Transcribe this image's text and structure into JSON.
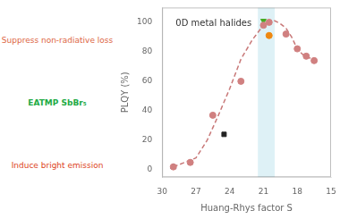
{
  "chart_data": {
    "type": "scatter",
    "xlabel": "Huang-Rhys factor S",
    "ylabel": "PLQY (%)",
    "xlim": [
      30,
      15
    ],
    "ylim": [
      -5,
      110
    ],
    "xticks": [
      30,
      27,
      24,
      21,
      18,
      15
    ],
    "yticks": [
      0,
      20,
      40,
      60,
      80,
      100
    ],
    "grid": false,
    "annotations": [
      {
        "text": "0D metal halides",
        "color": "#333333"
      },
      {
        "text": "Suppress non-radiative loss",
        "color": "#dd6644"
      },
      {
        "text": "EATMP SbBr₅",
        "color": "#22aa44"
      },
      {
        "text": "Induce bright emission",
        "color": "#dd4422"
      }
    ],
    "spans": [
      {
        "x": [
          20.0,
          21.5
        ],
        "color": "#c8e8f0"
      }
    ],
    "series": [
      {
        "type": "line",
        "line_style": "dashed",
        "color": "#c87878",
        "x": [
          29,
          28,
          27,
          26,
          25,
          24,
          23,
          22,
          21,
          20.5,
          20,
          19.5,
          19,
          18.5,
          18,
          17.5,
          17,
          16.5
        ],
        "values": [
          2,
          5,
          8,
          20,
          37,
          55,
          75,
          88,
          98,
          101,
          101,
          99,
          96,
          90,
          82,
          78,
          76,
          75
        ]
      },
      {
        "type": "scatter",
        "marker": "circle",
        "color": "#d08080",
        "x": [
          29.0,
          27.5,
          25.5,
          23.0,
          21.0,
          20.5,
          19.0,
          18.0,
          17.2,
          16.5
        ],
        "values": [
          2,
          5,
          37,
          60,
          98,
          100,
          92,
          82,
          77,
          74
        ]
      },
      {
        "type": "scatter",
        "marker": "triangle_up",
        "color": "#2255aa",
        "x": [
          29.0
        ],
        "values": [
          2
        ]
      },
      {
        "type": "scatter",
        "marker": "triangle_down",
        "color": "#44aa22",
        "x": [
          21.0
        ],
        "values": [
          101
        ]
      },
      {
        "type": "scatter",
        "marker": "circle",
        "color": "#ee8811",
        "x": [
          20.5
        ],
        "values": [
          91
        ]
      },
      {
        "type": "scatter",
        "marker": "square",
        "color": "#222222",
        "x": [
          24.5
        ],
        "values": [
          24
        ]
      }
    ]
  }
}
